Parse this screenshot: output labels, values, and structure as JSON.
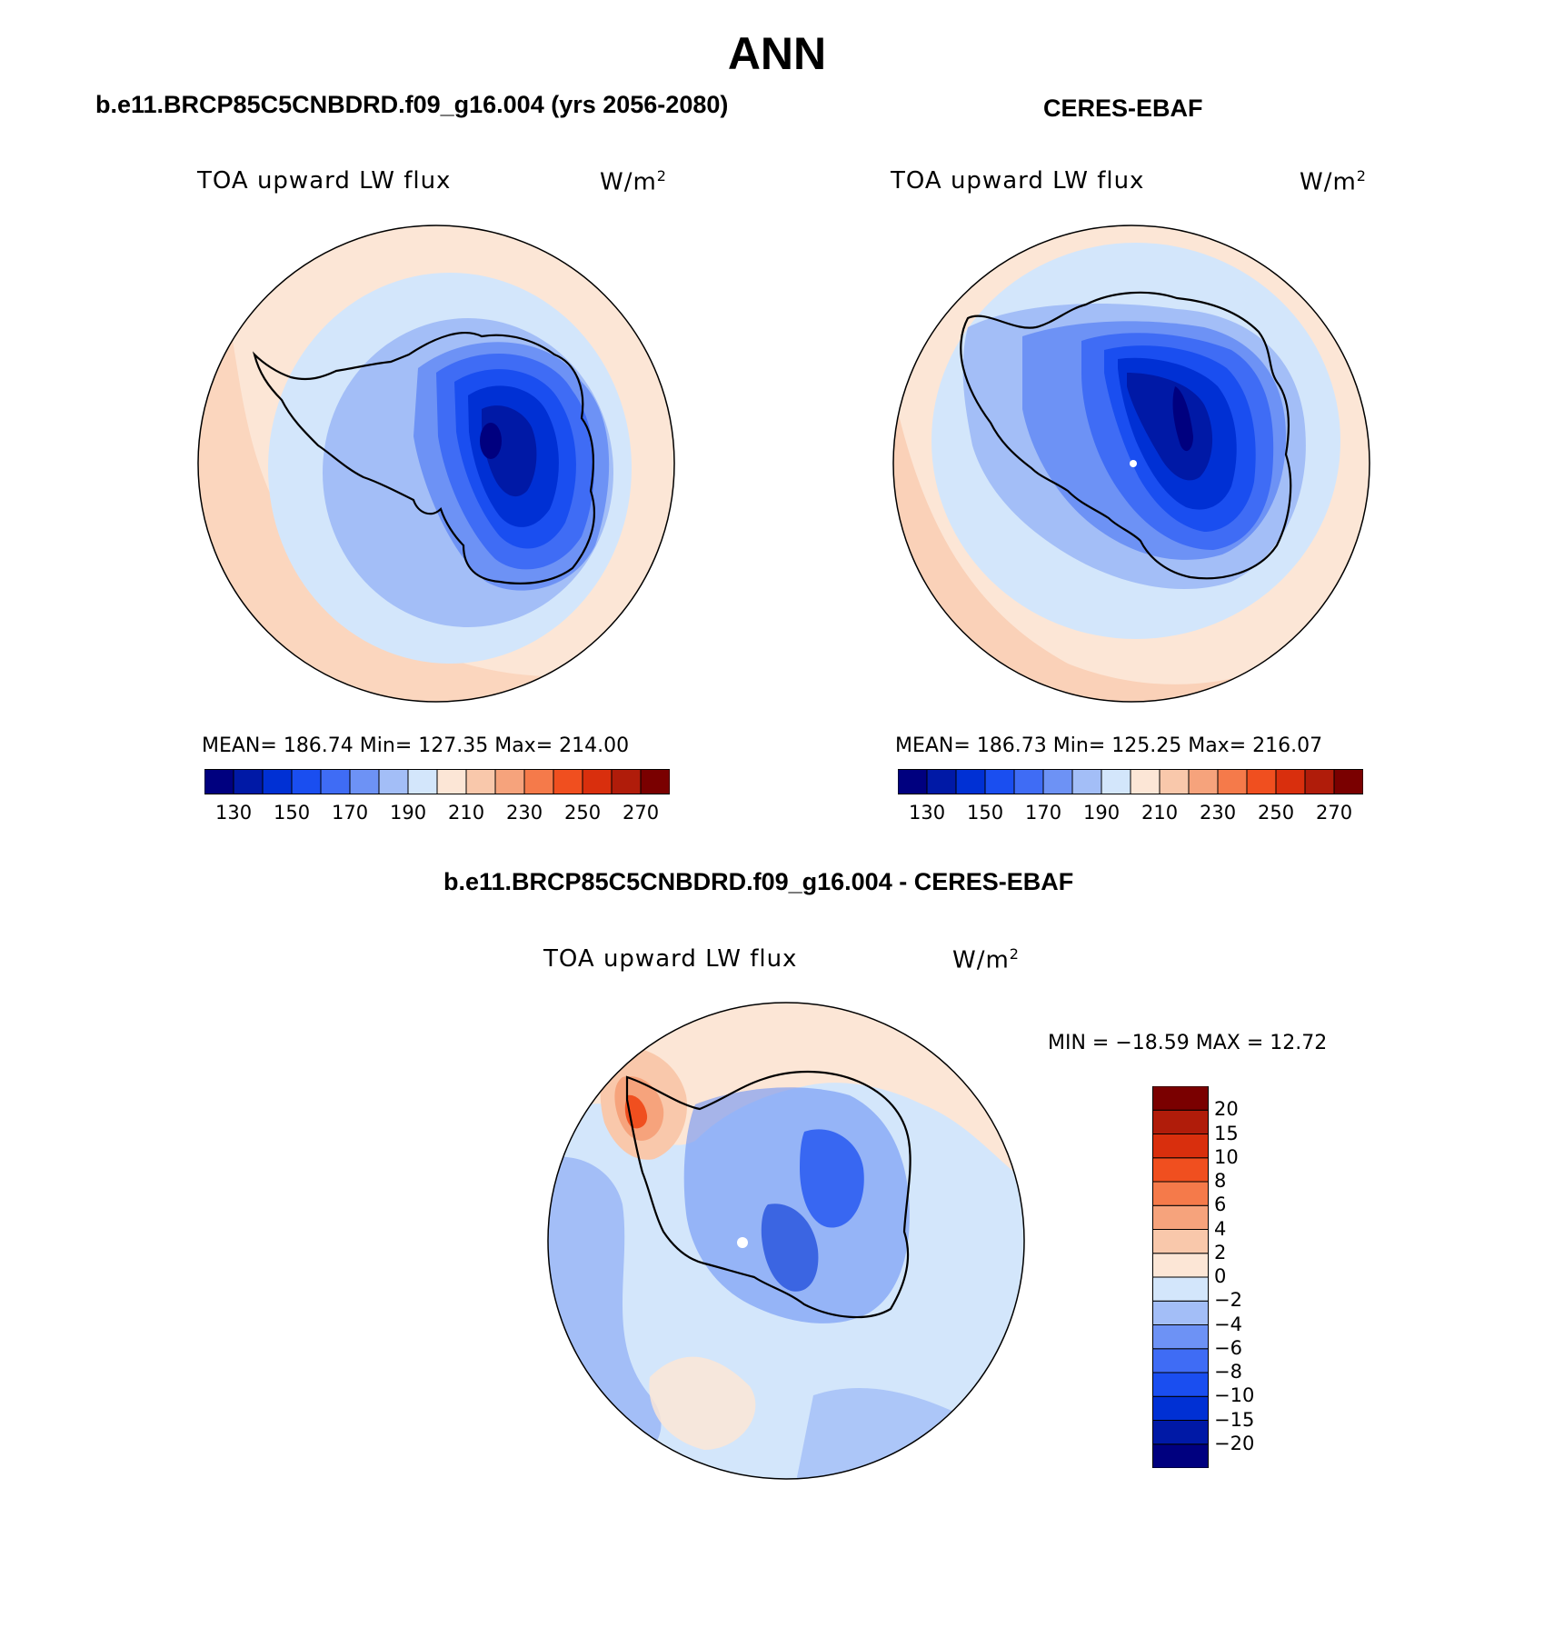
{
  "figure": {
    "title": "ANN",
    "panels": [
      {
        "header": "b.e11.BRCP85C5CNBDRD.f09_g16.004 (yrs 2056-2080)",
        "variable": "TOA upward LW flux",
        "units_base": "W/m",
        "units_exp": "2",
        "stats": "MEAN= 186.74   Min= 127.35   Max= 214.00"
      },
      {
        "header": "CERES-EBAF",
        "variable": "TOA upward LW flux",
        "units_base": "W/m",
        "units_exp": "2",
        "stats": "MEAN= 186.73   Min= 125.25   Max= 216.07"
      },
      {
        "header": "b.e11.BRCP85C5CNBDRD.f09_g16.004 - CERES-EBAF",
        "variable": "TOA upward LW flux",
        "units_base": "W/m",
        "units_exp": "2",
        "stats": "MIN = −18.59  MAX =   12.72"
      }
    ]
  },
  "chart_data": [
    {
      "type": "heatmap",
      "projection": "south polar stereographic",
      "region": "Antarctica",
      "title": "b.e11.BRCP85C5CNBDRD.f09_g16.004 (yrs 2056-2080)",
      "variable": "TOA upward LW flux",
      "units": "W/m2",
      "mean": 186.74,
      "min": 127.35,
      "max": 214.0,
      "colorbar": {
        "orientation": "horizontal",
        "levels": [
          130,
          140,
          150,
          160,
          170,
          180,
          190,
          200,
          210,
          220,
          230,
          240,
          250,
          260,
          270
        ],
        "tick_labels": [
          "130",
          "150",
          "170",
          "190",
          "210",
          "230",
          "250",
          "270"
        ],
        "colors": [
          "#00007f",
          "#0019a6",
          "#0030d4",
          "#1a4ef0",
          "#3f6cf5",
          "#6d92f5",
          "#a3bef7",
          "#d3e6fb",
          "#fce6d6",
          "#f9c8ab",
          "#f6a37c",
          "#f57a4a",
          "#f04f1f",
          "#d92f0d",
          "#b01c0a",
          "#7a0000"
        ]
      }
    },
    {
      "type": "heatmap",
      "projection": "south polar stereographic",
      "region": "Antarctica",
      "title": "CERES-EBAF",
      "variable": "TOA upward LW flux",
      "units": "W/m2",
      "mean": 186.73,
      "min": 125.25,
      "max": 216.07,
      "colorbar": {
        "orientation": "horizontal",
        "levels": [
          130,
          140,
          150,
          160,
          170,
          180,
          190,
          200,
          210,
          220,
          230,
          240,
          250,
          260,
          270
        ],
        "tick_labels": [
          "130",
          "150",
          "170",
          "190",
          "210",
          "230",
          "250",
          "270"
        ],
        "colors": [
          "#00007f",
          "#0019a6",
          "#0030d4",
          "#1a4ef0",
          "#3f6cf5",
          "#6d92f5",
          "#a3bef7",
          "#d3e6fb",
          "#fce6d6",
          "#f9c8ab",
          "#f6a37c",
          "#f57a4a",
          "#f04f1f",
          "#d92f0d",
          "#b01c0a",
          "#7a0000"
        ]
      }
    },
    {
      "type": "heatmap",
      "projection": "south polar stereographic",
      "region": "Antarctica",
      "title": "b.e11.BRCP85C5CNBDRD.f09_g16.004 - CERES-EBAF",
      "variable": "TOA upward LW flux",
      "units": "W/m2",
      "min": -18.59,
      "max": 12.72,
      "colorbar": {
        "orientation": "vertical",
        "levels": [
          -20,
          -15,
          -10,
          -8,
          -6,
          -4,
          -2,
          0,
          2,
          4,
          6,
          8,
          10,
          15,
          20
        ],
        "tick_labels": [
          "−20",
          "−15",
          "−10",
          "−8",
          "−6",
          "−4",
          "−2",
          "0",
          "2",
          "4",
          "6",
          "8",
          "10",
          "15",
          "20"
        ],
        "colors": [
          "#00007f",
          "#0019a6",
          "#0030d4",
          "#1a4ef0",
          "#3f6cf5",
          "#6d92f5",
          "#a3bef7",
          "#d3e6fb",
          "#fce6d6",
          "#f9c8ab",
          "#f6a37c",
          "#f57a4a",
          "#f04f1f",
          "#d92f0d",
          "#b01c0a",
          "#7a0000"
        ]
      }
    }
  ]
}
